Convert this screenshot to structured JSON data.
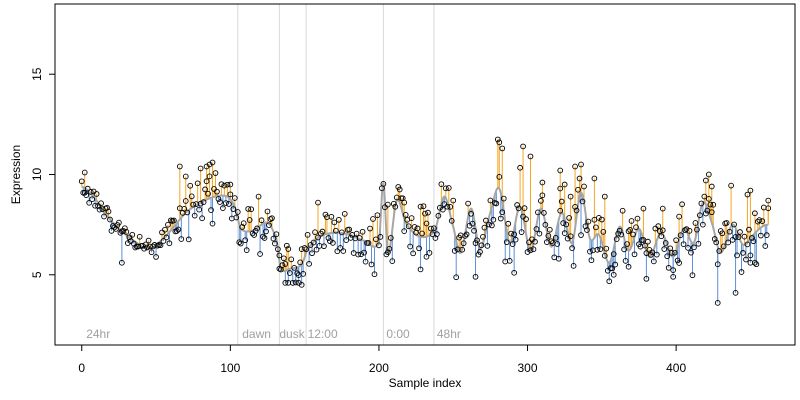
{
  "chart_data": {
    "type": "scatter",
    "xlabel": "Sample index",
    "ylabel": "Expression",
    "xlim": [
      -18,
      480
    ],
    "ylim": [
      1.5,
      18.5
    ],
    "xticks": [
      0,
      100,
      200,
      300,
      400
    ],
    "yticks": [
      5,
      10,
      15
    ],
    "grid": false,
    "colors": {
      "fit_line": "#a6a6a6",
      "residual_up": "#f5a623",
      "residual_down": "#5b8fd6",
      "point_edge": "#000000",
      "phase_line": "#d9d9d9",
      "phase_text": "#a0a0a0"
    },
    "phase_lines": [
      105,
      133,
      151,
      203,
      237
    ],
    "phase_labels": [
      {
        "x": 3,
        "text": "24hr"
      },
      {
        "x": 108,
        "text": "dawn"
      },
      {
        "x": 133,
        "text": "dusk"
      },
      {
        "x": 152,
        "text": "12:00"
      },
      {
        "x": 205,
        "text": "0:00"
      },
      {
        "x": 239,
        "text": "48hr"
      }
    ],
    "fit_anchors": [
      [
        0,
        9.4
      ],
      [
        8,
        8.9
      ],
      [
        15,
        8.1
      ],
      [
        25,
        7.3
      ],
      [
        35,
        6.7
      ],
      [
        45,
        6.3
      ],
      [
        55,
        6.8
      ],
      [
        62,
        7.4
      ],
      [
        70,
        8.1
      ],
      [
        80,
        8.6
      ],
      [
        90,
        8.9
      ],
      [
        98,
        8.9
      ],
      [
        103,
        8.4
      ],
      [
        107,
        7.3
      ],
      [
        115,
        7.2
      ],
      [
        125,
        7.6
      ],
      [
        131,
        6.8
      ],
      [
        134,
        5.3
      ],
      [
        140,
        5.3
      ],
      [
        148,
        5.5
      ],
      [
        152,
        6.3
      ],
      [
        160,
        6.9
      ],
      [
        170,
        7.1
      ],
      [
        180,
        7.0
      ],
      [
        190,
        6.7
      ],
      [
        200,
        6.6
      ],
      [
        203,
        9.6
      ],
      [
        206,
        6.1
      ],
      [
        212,
        8.7
      ],
      [
        218,
        7.6
      ],
      [
        225,
        7.0
      ],
      [
        232,
        6.9
      ],
      [
        238,
        7.3
      ],
      [
        244,
        8.9
      ],
      [
        250,
        7.4
      ],
      [
        255,
        6.1
      ],
      [
        262,
        8.3
      ],
      [
        268,
        6.3
      ],
      [
        275,
        8.1
      ],
      [
        281,
        9.3
      ],
      [
        288,
        6.6
      ],
      [
        295,
        8.4
      ],
      [
        302,
        6.2
      ],
      [
        309,
        8.3
      ],
      [
        316,
        6.4
      ],
      [
        323,
        8.1
      ],
      [
        330,
        6.6
      ],
      [
        336,
        9.1
      ],
      [
        342,
        6.8
      ],
      [
        348,
        7.0
      ],
      [
        355,
        5.6
      ],
      [
        362,
        7.4
      ],
      [
        368,
        6.2
      ],
      [
        375,
        7.3
      ],
      [
        382,
        5.9
      ],
      [
        390,
        7.1
      ],
      [
        398,
        5.9
      ],
      [
        405,
        7.3
      ],
      [
        412,
        6.6
      ],
      [
        418,
        8.6
      ],
      [
        424,
        7.6
      ],
      [
        430,
        6.1
      ],
      [
        438,
        7.5
      ],
      [
        445,
        6.5
      ],
      [
        452,
        7.0
      ],
      [
        458,
        7.4
      ],
      [
        462,
        7.5
      ]
    ],
    "peaks": [
      [
        2,
        10.1
      ],
      [
        66,
        10.4
      ],
      [
        70,
        9.9
      ],
      [
        80,
        10.3
      ],
      [
        84,
        10.4
      ],
      [
        86,
        10.5
      ],
      [
        88,
        10.6
      ],
      [
        100,
        9.5
      ],
      [
        159,
        8.6
      ],
      [
        206,
        8.5
      ],
      [
        217,
        8.6
      ],
      [
        228,
        8.4
      ],
      [
        281,
        11.6
      ],
      [
        283,
        11.3
      ],
      [
        297,
        11.4
      ],
      [
        302,
        10.9
      ],
      [
        310,
        9.6
      ],
      [
        322,
        9.3
      ],
      [
        325,
        9.5
      ],
      [
        322,
        10.2
      ],
      [
        329,
        8.9
      ],
      [
        332,
        10.4
      ],
      [
        336,
        10.5
      ],
      [
        345,
        9.8
      ],
      [
        352,
        8.9
      ],
      [
        378,
        8.3
      ],
      [
        391,
        8.3
      ],
      [
        402,
        7.9
      ],
      [
        420,
        9.7
      ],
      [
        422,
        10.0
      ],
      [
        424,
        9.4
      ],
      [
        448,
        9.0
      ],
      [
        450,
        9.2
      ],
      [
        462,
        8.7
      ]
    ],
    "dips": [
      [
        27,
        5.6
      ],
      [
        133,
        5.3
      ],
      [
        137,
        4.6
      ],
      [
        139,
        4.6
      ],
      [
        146,
        4.6
      ],
      [
        148,
        4.5
      ],
      [
        232,
        5.9
      ],
      [
        265,
        4.9
      ],
      [
        291,
        5.1
      ],
      [
        358,
        5.0
      ],
      [
        368,
        5.4
      ],
      [
        380,
        4.8
      ],
      [
        398,
        4.9
      ],
      [
        428,
        3.6
      ],
      [
        440,
        4.1
      ],
      [
        450,
        5.6
      ],
      [
        453,
        5.6
      ]
    ]
  }
}
